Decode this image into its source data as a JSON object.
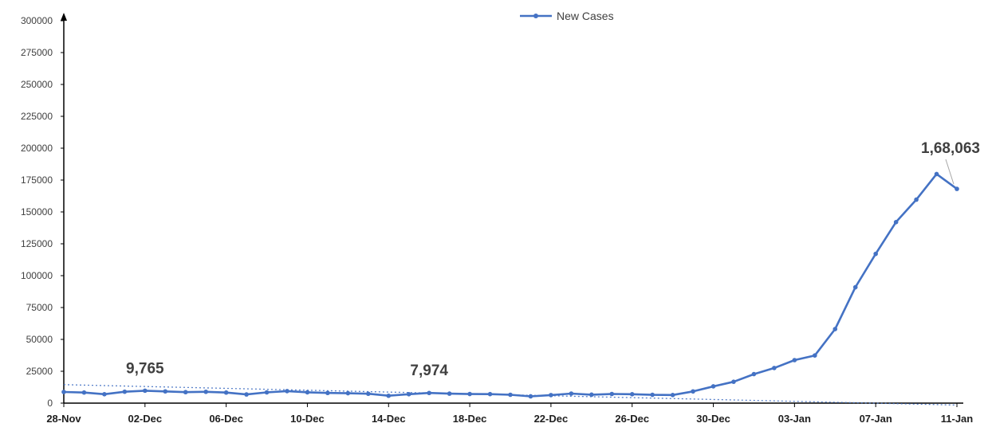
{
  "chart_data": {
    "type": "line",
    "title": "",
    "xlabel": "",
    "ylabel": "",
    "ylim": [
      0,
      300000
    ],
    "yticks": [
      0,
      25000,
      50000,
      75000,
      100000,
      125000,
      150000,
      175000,
      200000,
      225000,
      250000,
      275000,
      300000
    ],
    "ytick_labels": [
      "0",
      "25000",
      "50000",
      "75000",
      "100000",
      "125000",
      "150000",
      "175000",
      "200000",
      "225000",
      "250000",
      "275000",
      "300000"
    ],
    "x": [
      "28-Nov",
      "29-Nov",
      "30-Nov",
      "01-Dec",
      "02-Dec",
      "03-Dec",
      "04-Dec",
      "05-Dec",
      "06-Dec",
      "07-Dec",
      "08-Dec",
      "09-Dec",
      "10-Dec",
      "11-Dec",
      "12-Dec",
      "13-Dec",
      "14-Dec",
      "15-Dec",
      "16-Dec",
      "17-Dec",
      "18-Dec",
      "19-Dec",
      "20-Dec",
      "21-Dec",
      "22-Dec",
      "23-Dec",
      "24-Dec",
      "25-Dec",
      "26-Dec",
      "27-Dec",
      "28-Dec",
      "29-Dec",
      "30-Dec",
      "31-Dec",
      "01-Jan",
      "02-Jan",
      "03-Jan",
      "04-Jan",
      "05-Jan",
      "06-Jan",
      "07-Jan",
      "08-Jan",
      "09-Jan",
      "10-Jan",
      "11-Jan"
    ],
    "xtick_labels": [
      "28-Nov",
      "02-Dec",
      "06-Dec",
      "10-Dec",
      "14-Dec",
      "18-Dec",
      "22-Dec",
      "26-Dec",
      "30-Dec",
      "03-Jan",
      "07-Jan",
      "11-Jan"
    ],
    "series": [
      {
        "name": "New Cases",
        "color": "#4472C4",
        "values": [
          8774,
          8309,
          6990,
          8954,
          9765,
          9216,
          8603,
          8895,
          8306,
          6822,
          8439,
          9419,
          8503,
          7992,
          7774,
          7350,
          5784,
          6984,
          7974,
          7447,
          7145,
          7081,
          6563,
          5326,
          6317,
          7495,
          6650,
          7189,
          6987,
          6531,
          6358,
          9195,
          13154,
          16764,
          22775,
          27553,
          33750,
          37379,
          58097,
          90928,
          117100,
          141986,
          159632,
          179723,
          168063
        ]
      }
    ],
    "annotations": [
      {
        "index": 4,
        "label": "9,765"
      },
      {
        "index": 18,
        "label": "7,974"
      },
      {
        "index": 44,
        "label": "1,68,063"
      }
    ],
    "trendline": {
      "style": "dotted",
      "color": "#4472C4",
      "start_value": 14500,
      "end_value": -1500
    },
    "legend": {
      "position": "top-center",
      "entries": [
        "New Cases"
      ]
    },
    "grid": false
  }
}
